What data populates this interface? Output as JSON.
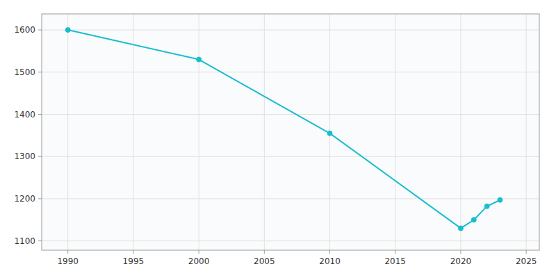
{
  "chart_data": {
    "type": "line",
    "x": [
      1990,
      2000,
      2010,
      2020,
      2021,
      2022,
      2023
    ],
    "values": [
      1600,
      1530,
      1355,
      1130,
      1150,
      1182,
      1197
    ],
    "color": "#17BECF",
    "marker": "circle",
    "xlim": [
      1988,
      2026
    ],
    "ylim": [
      1078,
      1638
    ],
    "xticks": [
      1990,
      1995,
      2000,
      2005,
      2010,
      2015,
      2020,
      2025
    ],
    "yticks": [
      1100,
      1200,
      1300,
      1400,
      1500,
      1600
    ],
    "grid": true
  }
}
